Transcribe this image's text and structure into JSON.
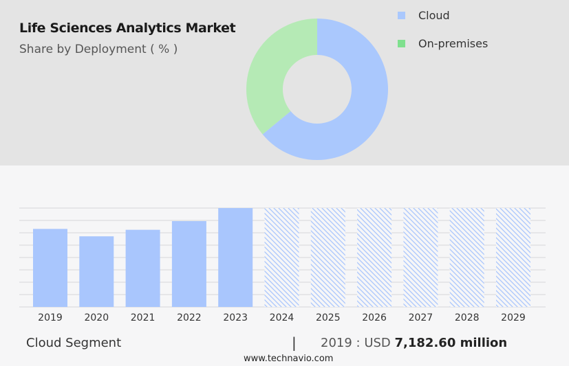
{
  "header": {
    "title": "Life Sciences Analytics Market",
    "subtitle": "Share by Deployment ( % )"
  },
  "chart_data": [
    {
      "type": "pie",
      "variant": "donut",
      "title": "Share by Deployment ( % )",
      "labels": [
        "Cloud",
        "On-premises"
      ],
      "values": [
        64,
        36
      ],
      "colors": [
        "#aac8fd",
        "#b5eab5"
      ],
      "legend_swatch_colors": [
        "#aac8fd",
        "#7fe08e"
      ],
      "legend": "right"
    },
    {
      "type": "bar",
      "categories": [
        "2019",
        "2020",
        "2021",
        "2022",
        "2023",
        "2024",
        "2025",
        "2026",
        "2027",
        "2028",
        "2029"
      ],
      "values": [
        7182.6,
        6500,
        7100,
        7900,
        9100,
        null,
        null,
        null,
        null,
        null,
        null
      ],
      "forecast_categories": [
        "2024",
        "2025",
        "2026",
        "2027",
        "2028",
        "2029"
      ],
      "forecast_style": "hatched",
      "ylim": [
        0,
        9100
      ],
      "grid": true,
      "bar_color": "#a9c6fd",
      "hatch_color": "#a9c6fd"
    }
  ],
  "footer": {
    "segment_label": "Cloud Segment",
    "separator": "|",
    "value_prefix": "2019 : USD",
    "value_bold": "7,182.60 million",
    "url": "www.technavio.com"
  }
}
